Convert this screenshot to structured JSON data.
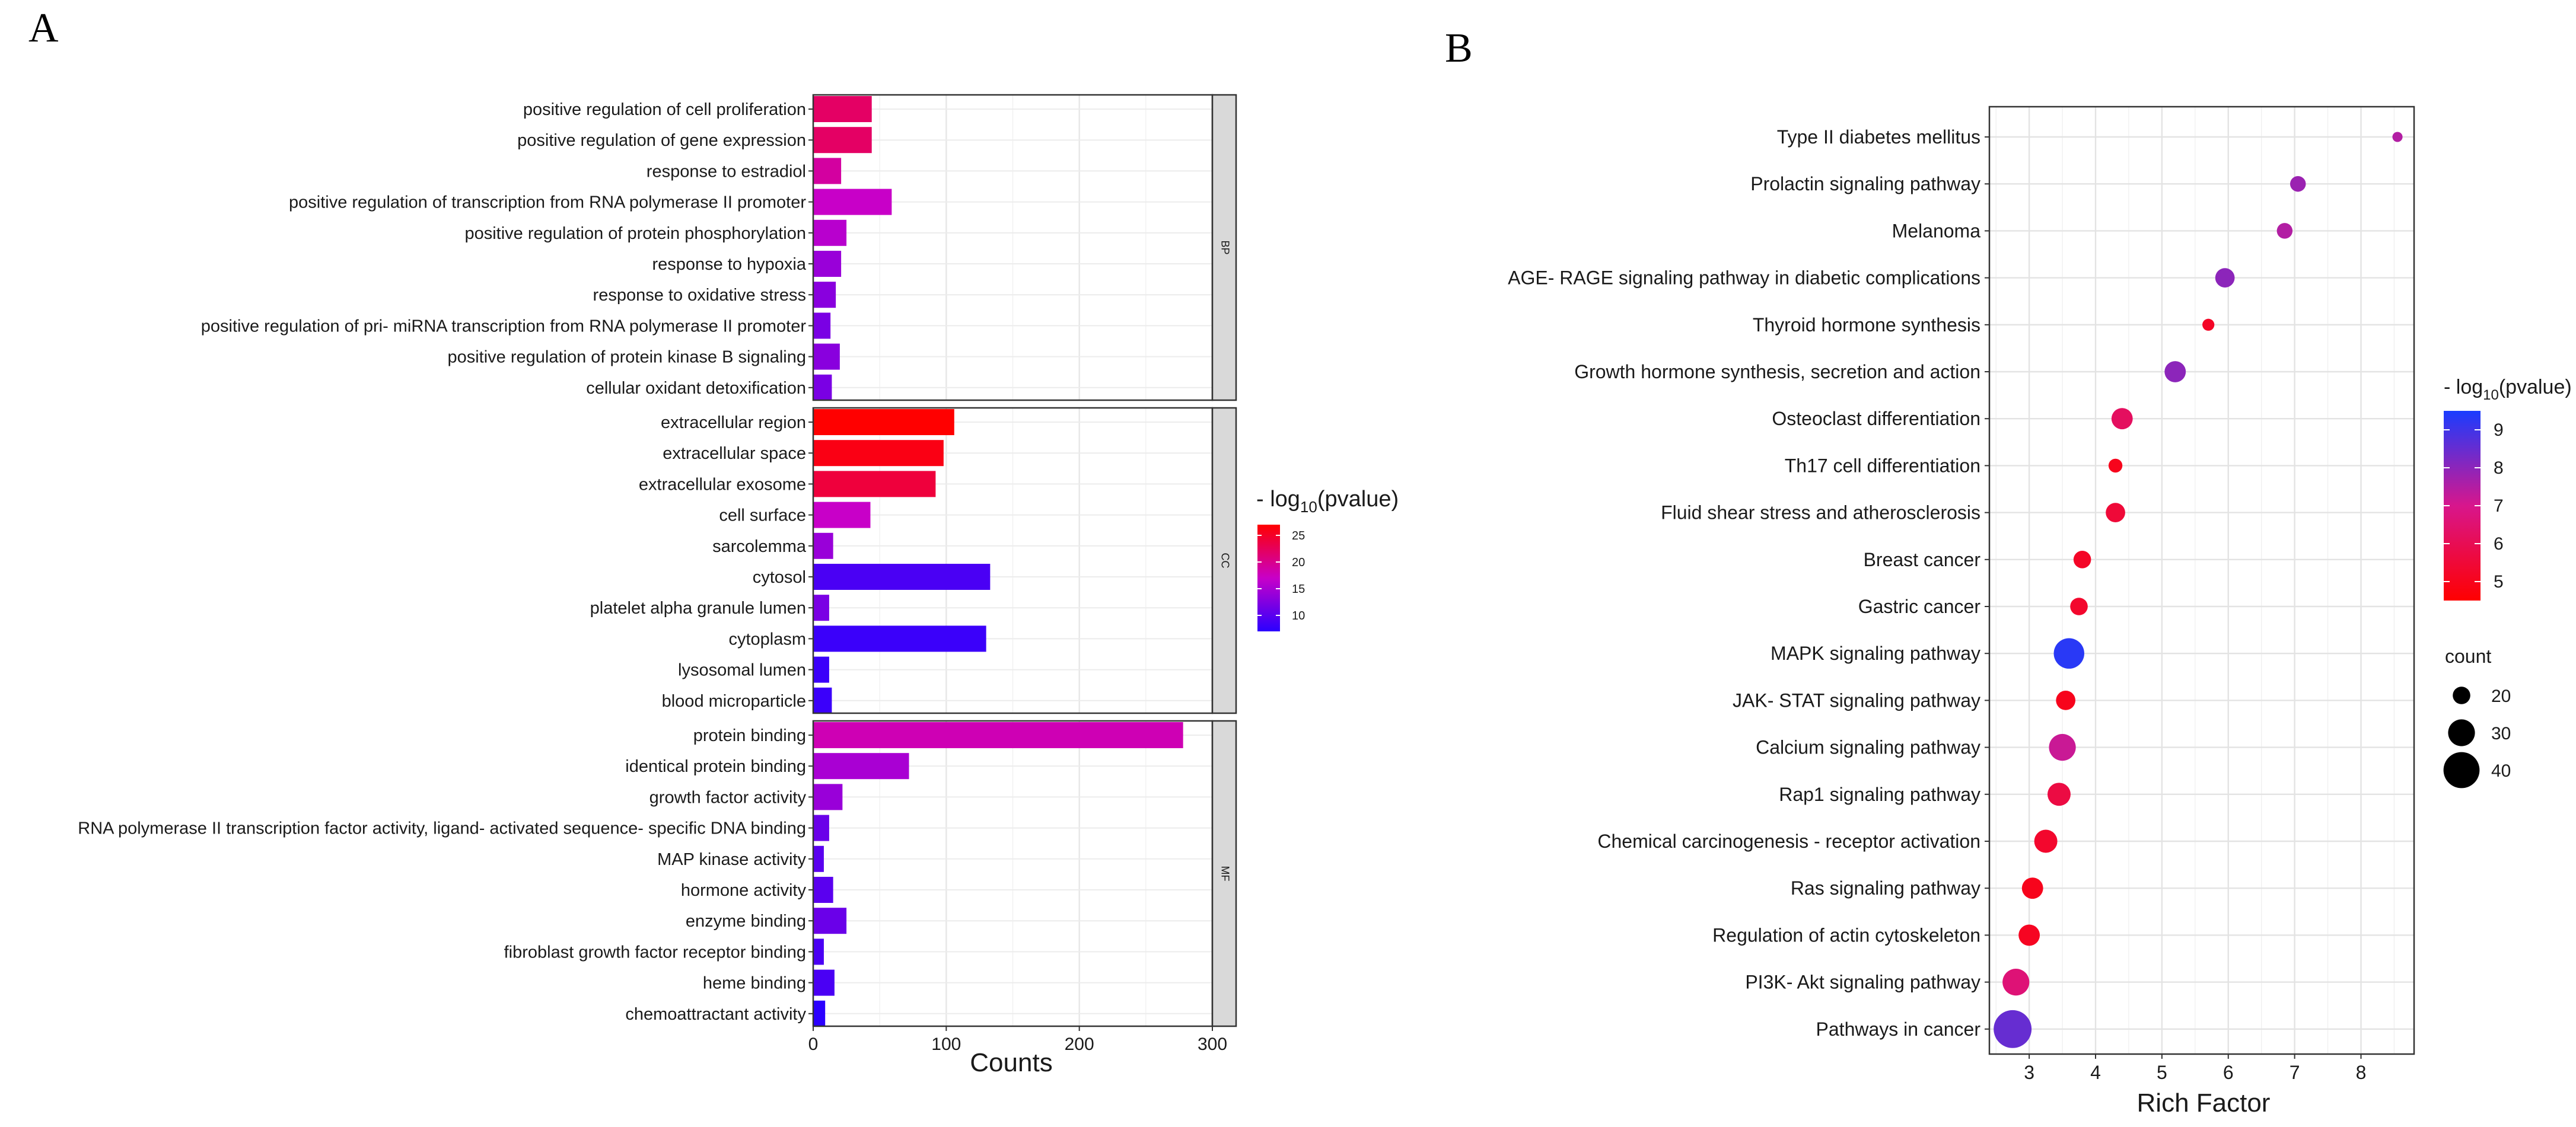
{
  "panels": {
    "a_label": "A",
    "b_label": "B"
  },
  "chart_data": [
    {
      "type": "bar",
      "orientation": "horizontal",
      "panel": "A",
      "xlabel": "Counts",
      "xlim": [
        0,
        300
      ],
      "xticks": [
        0,
        100,
        200,
        300
      ],
      "color_legend": {
        "title_prefix": "- log",
        "title_sub": "10",
        "title_suffix": "(pvalue)",
        "range": [
          7,
          27
        ],
        "ticks": [
          10,
          15,
          20,
          25
        ],
        "low_color": "#2b00ff",
        "high_color": "#ff0000"
      },
      "facets": [
        {
          "name": "BP",
          "categories": [
            "positive regulation of cell proliferation",
            "positive regulation of gene expression",
            "response to estradiol",
            "positive regulation of transcription from RNA polymerase II promoter",
            "positive regulation of protein phosphorylation",
            "response to hypoxia",
            "response to oxidative stress",
            "positive regulation of pri- miRNA transcription from RNA polymerase II promoter",
            "positive regulation of protein kinase B signaling",
            "cellular oxidant detoxification"
          ],
          "values": [
            44,
            44,
            21,
            59,
            25,
            21,
            17,
            13,
            20,
            14
          ],
          "pvalue": [
            22,
            22,
            19,
            17,
            16,
            14,
            13,
            12,
            13,
            12
          ]
        },
        {
          "name": "CC",
          "categories": [
            "extracellular region",
            "extracellular space",
            "extracellular exosome",
            "cell surface",
            "sarcolemma",
            "cytosol",
            "platelet alpha granule lumen",
            "cytoplasm",
            "lysosomal lumen",
            "blood microparticle"
          ],
          "values": [
            106,
            98,
            92,
            43,
            15,
            133,
            12,
            130,
            12,
            14
          ],
          "pvalue": [
            27,
            26,
            24,
            17,
            14,
            9,
            12,
            8,
            8,
            8
          ]
        },
        {
          "name": "MF",
          "categories": [
            "protein binding",
            "identical protein binding",
            "growth factor activity",
            "RNA polymerase II transcription factor activity, ligand- activated sequence- specific DNA binding",
            "MAP kinase activity",
            "hormone activity",
            "enzyme binding",
            "fibroblast growth factor receptor binding",
            "heme binding",
            "chemoattractant activity"
          ],
          "values": [
            278,
            72,
            22,
            12,
            8,
            15,
            25,
            8,
            16,
            9
          ],
          "pvalue": [
            18,
            15,
            14,
            11,
            10,
            10,
            11,
            9,
            9,
            7
          ]
        }
      ]
    },
    {
      "type": "scatter",
      "panel": "B",
      "xlabel": "Rich Factor",
      "xlim": [
        2.4,
        8.8
      ],
      "xticks": [
        3,
        4,
        5,
        6,
        7,
        8
      ],
      "grid": true,
      "color_legend": {
        "title_prefix": "- log",
        "title_sub": "10",
        "title_suffix": "(pvalue)",
        "range": [
          4.5,
          9.5
        ],
        "ticks": [
          5,
          6,
          7,
          8,
          9
        ],
        "low_color": "#ff0000",
        "high_color": "#1a3cff"
      },
      "size_legend": {
        "title": "count",
        "ticks": [
          20,
          30,
          40
        ]
      },
      "categories": [
        "Type II diabetes mellitus",
        "Prolactin signaling pathway",
        "Melanoma",
        "AGE- RAGE signaling pathway in diabetic complications",
        "Thyroid hormone synthesis",
        "Growth hormone synthesis, secretion and action",
        "Osteoclast differentiation",
        "Th17 cell differentiation",
        "Fluid shear stress and atherosclerosis",
        "Breast cancer",
        "Gastric cancer",
        "MAPK signaling pathway",
        "JAK- STAT signaling pathway",
        "Calcium signaling pathway",
        "Rap1 signaling pathway",
        "Chemical carcinogenesis -  receptor activation",
        "Ras signaling pathway",
        "Regulation of actin cytoskeleton",
        "PI3K- Akt signaling pathway",
        "Pathways in cancer"
      ],
      "x": [
        8.55,
        7.05,
        6.85,
        5.95,
        5.7,
        5.2,
        4.4,
        4.3,
        4.3,
        3.8,
        3.75,
        3.6,
        3.55,
        3.5,
        3.45,
        3.25,
        3.05,
        3.0,
        2.8,
        2.75
      ],
      "count": [
        12,
        18,
        18,
        22,
        14,
        24,
        24,
        16,
        22,
        20,
        20,
        34,
        22,
        30,
        26,
        26,
        24,
        24,
        30,
        42
      ],
      "pvalue": [
        7.5,
        7.8,
        7.5,
        8.0,
        5.2,
        8.0,
        6.2,
        5.0,
        5.5,
        5.2,
        5.3,
        9.3,
        5.0,
        7.2,
        5.7,
        5.3,
        5.0,
        5.1,
        6.6,
        8.5
      ]
    }
  ]
}
